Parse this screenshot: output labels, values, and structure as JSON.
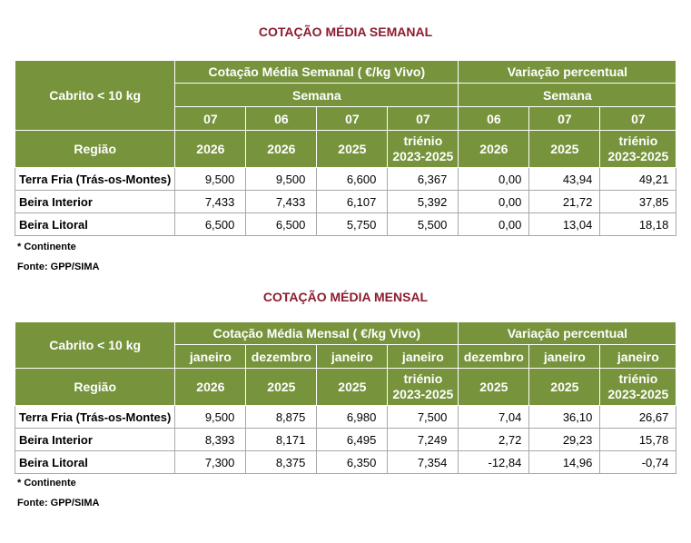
{
  "weekly": {
    "title": "COTAÇÃO MÉDIA SEMANAL",
    "corner_label": "Cabrito < 10 kg",
    "region_header": "Região",
    "group_price": "Cotação Média Semanal ( €/kg Vivo)",
    "group_var": "Variação percentual",
    "sub_price": "Semana",
    "sub_var": "Semana",
    "cols": [
      {
        "period": "07",
        "year_line1": "2026",
        "year_line2": ""
      },
      {
        "period": "06",
        "year_line1": "2026",
        "year_line2": ""
      },
      {
        "period": "07",
        "year_line1": "2025",
        "year_line2": ""
      },
      {
        "period": "07",
        "year_line1": "triénio",
        "year_line2": "2023-2025"
      },
      {
        "period": "06",
        "year_line1": "2026",
        "year_line2": ""
      },
      {
        "period": "07",
        "year_line1": "2025",
        "year_line2": ""
      },
      {
        "period": "07",
        "year_line1": "triénio",
        "year_line2": "2023-2025"
      }
    ],
    "rows": [
      {
        "region": "Terra Fria (Trás-os-Montes)",
        "values": [
          "9,500",
          "9,500",
          "6,600",
          "6,367",
          "0,00",
          "43,94",
          "49,21"
        ]
      },
      {
        "region": "Beira Interior",
        "values": [
          "7,433",
          "7,433",
          "6,107",
          "5,392",
          "0,00",
          "21,72",
          "37,85"
        ]
      },
      {
        "region": "Beira Litoral",
        "values": [
          "6,500",
          "6,500",
          "5,750",
          "5,500",
          "0,00",
          "13,04",
          "18,18"
        ]
      }
    ],
    "note": "* Continente",
    "source": "Fonte: GPP/SIMA"
  },
  "monthly": {
    "title": "COTAÇÃO MÉDIA MENSAL",
    "corner_label": "Cabrito < 10 kg",
    "region_header": "Região",
    "group_price": "Cotação Média Mensal ( €/kg Vivo)",
    "group_var": "Variação percentual",
    "cols": [
      {
        "period": "janeiro",
        "year_line1": "2026",
        "year_line2": ""
      },
      {
        "period": "dezembro",
        "year_line1": "2025",
        "year_line2": ""
      },
      {
        "period": "janeiro",
        "year_line1": "2025",
        "year_line2": ""
      },
      {
        "period": "janeiro",
        "year_line1": "triénio",
        "year_line2": "2023-2025"
      },
      {
        "period": "dezembro",
        "year_line1": "2025",
        "year_line2": ""
      },
      {
        "period": "janeiro",
        "year_line1": "2025",
        "year_line2": ""
      },
      {
        "period": "janeiro",
        "year_line1": "triénio",
        "year_line2": "2023-2025"
      }
    ],
    "rows": [
      {
        "region": "Terra Fria (Trás-os-Montes)",
        "values": [
          "9,500",
          "8,875",
          "6,980",
          "7,500",
          "7,04",
          "36,10",
          "26,67"
        ]
      },
      {
        "region": "Beira Interior",
        "values": [
          "8,393",
          "8,171",
          "6,495",
          "7,249",
          "2,72",
          "29,23",
          "15,78"
        ]
      },
      {
        "region": "Beira Litoral",
        "values": [
          "7,300",
          "8,375",
          "6,350",
          "7,354",
          "-12,84",
          "14,96",
          "-0,74"
        ]
      }
    ],
    "note": "* Continente",
    "source": "Fonte: GPP/SIMA"
  }
}
